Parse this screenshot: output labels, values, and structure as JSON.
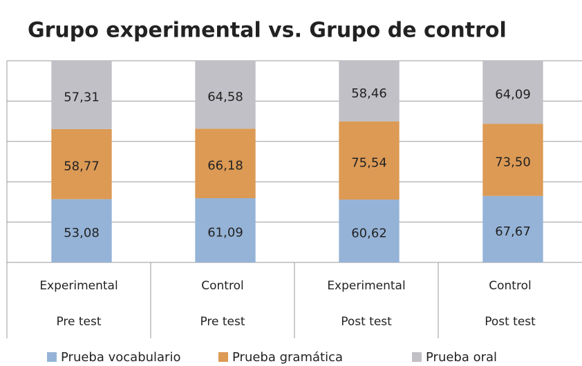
{
  "chart_data": {
    "type": "bar",
    "stacking": "percent",
    "title": "Grupo experimental vs. Grupo de control",
    "categories": [
      [
        "Experimental",
        "Pre test"
      ],
      [
        "Control",
        "Pre test"
      ],
      [
        "Experimental",
        "Post test"
      ],
      [
        "Control",
        "Post test"
      ]
    ],
    "series": [
      {
        "name": "Prueba vocabulario",
        "color": "#95b3d7",
        "values": [
          53.08,
          61.09,
          60.62,
          67.67
        ],
        "value_labels": [
          "53,08",
          "61,09",
          "60,62",
          "67,67"
        ]
      },
      {
        "name": "Prueba gramática",
        "color": "#dc9a55",
        "values": [
          58.77,
          66.18,
          75.54,
          73.5
        ],
        "value_labels": [
          "58,77",
          "66,18",
          "75,54",
          "73,50"
        ]
      },
      {
        "name": "Prueba oral",
        "color": "#c0c0c6",
        "values": [
          57.31,
          64.58,
          58.46,
          64.09
        ],
        "value_labels": [
          "57,31",
          "64,58",
          "58,46",
          "64,09"
        ]
      }
    ],
    "ylim": [
      0,
      100
    ],
    "yticks": [
      0,
      20,
      40,
      60,
      80,
      100
    ],
    "ytick_labels": false,
    "grid": true,
    "legend": "bottom"
  }
}
